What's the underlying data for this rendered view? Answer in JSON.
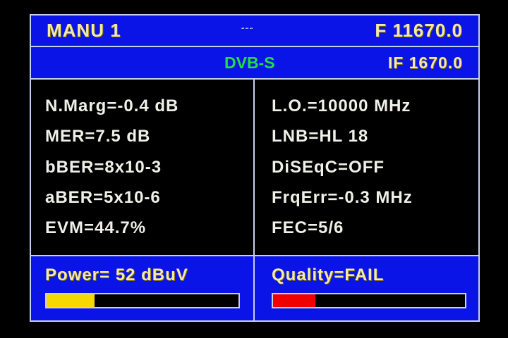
{
  "header": {
    "mode": "MANU 1",
    "dots": "▪▪ ▪▪ ▪▪",
    "frequency": "F 11670.0",
    "standard": "DVB-S",
    "if_frequency": "IF 1670.0"
  },
  "left": [
    "N.Marg=-0.4 dB",
    "MER=7.5 dB",
    "bBER=8x10-3",
    "aBER=5x10-6",
    "EVM=44.7%"
  ],
  "right": [
    "L.O.=10000 MHz",
    "LNB=HL 18",
    "DiSEqC=OFF",
    "FrqErr=-0.3 MHz",
    "FEC=5/6"
  ],
  "power": {
    "label": "Power=  52 dBuV",
    "level_percent": 25,
    "color": "#f5d800"
  },
  "quality": {
    "label": "Quality=FAIL",
    "level_percent": 22,
    "color": "#f00000"
  },
  "colors": {
    "panel": "#0a14e6",
    "standard": "#20e040"
  }
}
